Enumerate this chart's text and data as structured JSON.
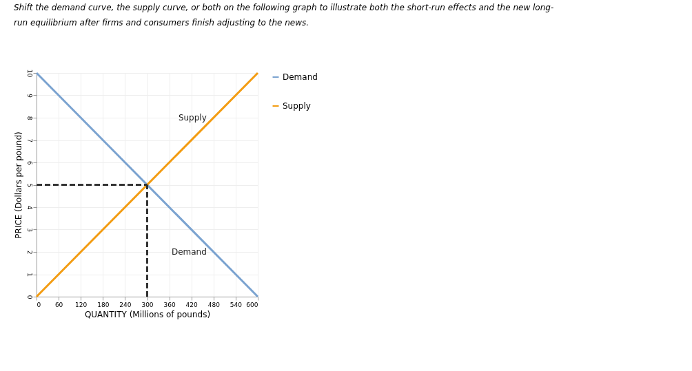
{
  "chart_data": {
    "type": "line",
    "title": [
      "Shift the demand curve, the supply curve, or both on the following graph to illustrate both the short-run effects and the new long-",
      "run equilibrium after firms and consumers finish adjusting to the news."
    ],
    "xlabel": "QUANTITY (Millions of pounds)",
    "ylabel": "PRICE (Dollars per pound)",
    "x": [
      0,
      600
    ],
    "series": [
      {
        "name": "Demand",
        "color": "#7ba3d0",
        "values": [
          10,
          0
        ]
      },
      {
        "name": "Supply",
        "color": "#f39c12",
        "values": [
          0,
          10
        ]
      }
    ],
    "xlim": [
      0,
      600
    ],
    "ylim": [
      0,
      10
    ],
    "xticks": [
      0,
      60,
      120,
      180,
      240,
      300,
      360,
      420,
      480,
      540,
      600
    ],
    "yticks": [
      0,
      1,
      2,
      3,
      4,
      5,
      6,
      7,
      8,
      9,
      10
    ],
    "ref_lines": [
      {
        "axis": "y",
        "value": 5,
        "color": "#333333",
        "line_style": "dashed"
      },
      {
        "axis": "x",
        "value": 300,
        "color": "#333333",
        "line_style": "dashed"
      }
    ],
    "grid": true,
    "legend": "right"
  }
}
